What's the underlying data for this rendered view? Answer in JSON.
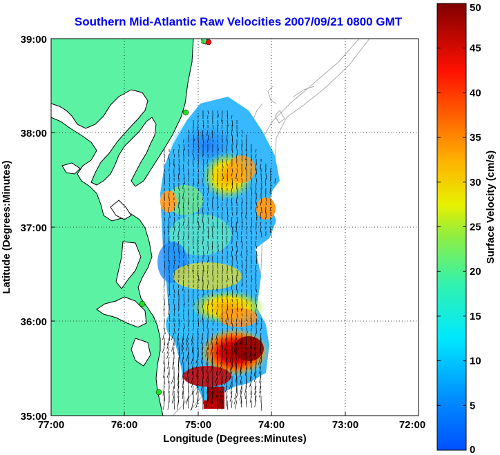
{
  "title": "Southern Mid-Atlantic Raw Velocities 2007/09/21 0800 GMT",
  "axes": {
    "xlabel": "Longitude (Degrees:Minutes)",
    "ylabel": "Latitude (Degrees:Minutes)",
    "x_ticks": [
      "77:00",
      "76:00",
      "75:00",
      "74:00",
      "73:00",
      "72:00"
    ],
    "y_ticks": [
      "39:00",
      "38:00",
      "37:00",
      "36:00",
      "35:00"
    ],
    "xlim_deg_west": [
      77,
      72
    ],
    "ylim_deg_north": [
      35,
      39
    ],
    "grid": "dotted"
  },
  "colorbar": {
    "label": "Surface Velocity (cm/s)",
    "ticks": [
      "50",
      "45",
      "40",
      "35",
      "30",
      "25",
      "20",
      "15",
      "10",
      "5",
      "0"
    ],
    "range": [
      0,
      50
    ],
    "colormap": "jet"
  },
  "colors": {
    "land": "#5cf2a4",
    "title": "#0000ee",
    "coastline": "#000000",
    "bathymetry": "#aaaaaa",
    "site_marker_green": "#22dd22",
    "site_marker_red": "#ee1111"
  },
  "chart_data": {
    "type": "heatmap",
    "description_units": "cm/s",
    "velocity_regions": [
      {
        "lon": -74.6,
        "lat": 37.9,
        "speed": 8
      },
      {
        "lon": -74.4,
        "lat": 37.6,
        "speed": 30
      },
      {
        "lon": -75.4,
        "lat": 37.05,
        "speed": 32
      },
      {
        "lon": -74.05,
        "lat": 37.0,
        "speed": 33
      },
      {
        "lon": -74.9,
        "lat": 36.5,
        "speed": 12
      },
      {
        "lon": -74.6,
        "lat": 36.2,
        "speed": 25
      },
      {
        "lon": -74.2,
        "lat": 35.75,
        "speed": 45
      },
      {
        "lon": -74.55,
        "lat": 35.55,
        "speed": 48
      },
      {
        "lon": -74.9,
        "lat": 35.2,
        "speed": 50
      }
    ]
  }
}
